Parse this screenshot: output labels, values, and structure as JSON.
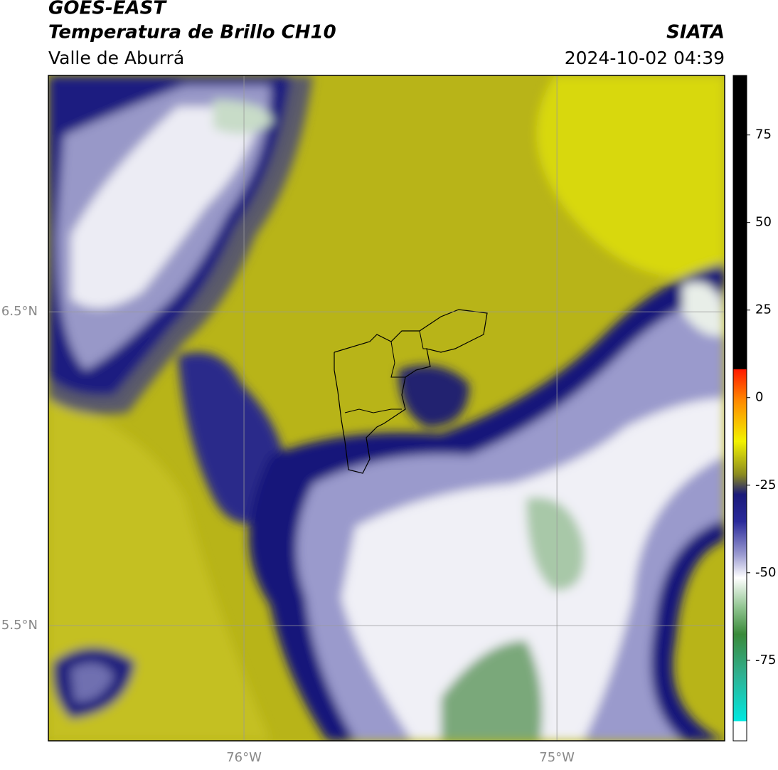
{
  "header": {
    "title": "GOES-EAST",
    "subtitle": "Temperatura de Brillo CH10",
    "region": "Valle de Aburrá",
    "source": "SIATA",
    "datetime": "2024-10-02 04:39"
  },
  "map": {
    "lonlim": [
      -76.625,
      -74.464
    ],
    "latlim": [
      5.133,
      7.253
    ],
    "lon_ticks": [
      {
        "value": -76,
        "label": "76°W"
      },
      {
        "value": -75,
        "label": "75°W"
      }
    ],
    "lat_ticks": [
      {
        "value": 6.5,
        "label": "6.5°N"
      },
      {
        "value": 5.5,
        "label": "5.5°N"
      }
    ]
  },
  "colorbar": {
    "lim": [
      -98,
      92
    ],
    "ticks": [
      75,
      50,
      25,
      0,
      -25,
      -50,
      -75
    ]
  }
}
